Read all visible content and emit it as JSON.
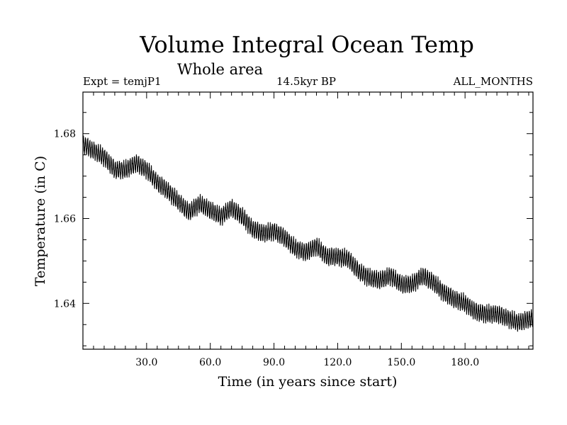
{
  "chart_data": {
    "type": "line",
    "title": "Volume Integral Ocean Temp",
    "subtitle": "Whole area",
    "experiment_label": "Expt = temjP1",
    "period_label": "14.5kyr BP",
    "months_label": "ALL_MONTHS",
    "xlabel": "Time (in years since start)",
    "ylabel": "Temperature (in C)",
    "xlim": [
      0,
      212
    ],
    "ylim": [
      1.6292,
      1.6898
    ],
    "x_ticks": [
      30,
      60,
      90,
      120,
      150,
      180
    ],
    "x_tick_labels": [
      "30.0",
      "60.0",
      "90.0",
      "120.0",
      "150.0",
      "180.0"
    ],
    "y_ticks": [
      1.64,
      1.66,
      1.68
    ],
    "y_tick_labels": [
      "1.64",
      "1.66",
      "1.68"
    ],
    "grid": false,
    "series": [
      {
        "name": "Volume integral ocean temperature",
        "seasonal_amplitude": 0.0018,
        "x": [
          0,
          5,
          10,
          15,
          20,
          25,
          30,
          35,
          40,
          45,
          50,
          55,
          60,
          65,
          70,
          75,
          80,
          85,
          90,
          95,
          100,
          105,
          110,
          115,
          120,
          125,
          130,
          135,
          140,
          145,
          150,
          155,
          160,
          165,
          170,
          175,
          180,
          185,
          190,
          195,
          200,
          205,
          212
        ],
        "values": [
          1.6775,
          1.676,
          1.6745,
          1.6715,
          1.6715,
          1.673,
          1.6715,
          1.6685,
          1.6665,
          1.664,
          1.6615,
          1.6635,
          1.662,
          1.6605,
          1.6625,
          1.6605,
          1.6575,
          1.6565,
          1.657,
          1.6555,
          1.653,
          1.652,
          1.6535,
          1.651,
          1.651,
          1.6505,
          1.6475,
          1.646,
          1.6455,
          1.6465,
          1.6445,
          1.6445,
          1.6465,
          1.645,
          1.6425,
          1.641,
          1.64,
          1.638,
          1.6375,
          1.6375,
          1.6365,
          1.6355,
          1.6365
        ]
      }
    ]
  }
}
